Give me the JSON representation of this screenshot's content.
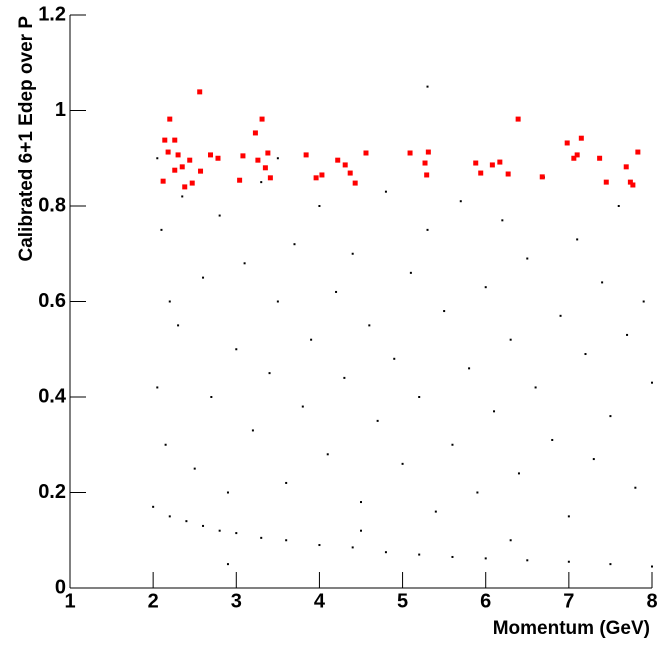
{
  "chart_data": {
    "type": "scatter",
    "x_label": "Momentum (GeV)",
    "y_label": "Calibrated 6+1 Edep over P",
    "xlim": [
      1,
      8
    ],
    "ylim": [
      0,
      1.2
    ],
    "xticks": [
      1,
      2,
      3,
      4,
      5,
      6,
      7,
      8
    ],
    "yticks": [
      0,
      0.2,
      0.4,
      0.6,
      0.8,
      1,
      1.2
    ],
    "series": [
      {
        "color": "#000000",
        "x": [
          2.0,
          2.2,
          2.4,
          2.6,
          2.8,
          3.0,
          3.3,
          3.6,
          4.0,
          4.4,
          4.8,
          5.2,
          5.6,
          6.0,
          6.5,
          7.0,
          7.5,
          8.0,
          2.05,
          2.1,
          2.15,
          2.3,
          2.35,
          2.5,
          2.6,
          2.7,
          2.8,
          2.9,
          3.0,
          3.1,
          3.2,
          3.3,
          3.4,
          3.5,
          3.6,
          3.7,
          3.8,
          3.9,
          4.0,
          4.1,
          4.2,
          4.3,
          4.4,
          4.5,
          4.6,
          4.7,
          4.8,
          4.9,
          5.0,
          5.1,
          5.2,
          5.3,
          5.4,
          5.5,
          5.6,
          5.7,
          5.8,
          5.9,
          6.0,
          6.1,
          6.2,
          6.3,
          6.4,
          6.5,
          6.6,
          6.7,
          6.8,
          6.9,
          7.0,
          7.1,
          7.2,
          7.3,
          7.4,
          7.5,
          7.6,
          7.7,
          7.8,
          7.9,
          8.0,
          2.2,
          3.5,
          5.3,
          2.9,
          4.5,
          6.3,
          2.05
        ],
        "values": [
          0.17,
          0.15,
          0.14,
          0.13,
          0.12,
          0.115,
          0.105,
          0.1,
          0.09,
          0.085,
          0.075,
          0.07,
          0.065,
          0.062,
          0.058,
          0.055,
          0.05,
          0.045,
          0.42,
          0.75,
          0.3,
          0.55,
          0.82,
          0.25,
          0.65,
          0.4,
          0.78,
          0.2,
          0.5,
          0.68,
          0.33,
          0.85,
          0.45,
          0.6,
          0.22,
          0.72,
          0.38,
          0.52,
          0.8,
          0.28,
          0.62,
          0.44,
          0.7,
          0.18,
          0.55,
          0.35,
          0.83,
          0.48,
          0.26,
          0.66,
          0.4,
          0.75,
          0.16,
          0.58,
          0.3,
          0.81,
          0.46,
          0.2,
          0.63,
          0.37,
          0.77,
          0.52,
          0.24,
          0.69,
          0.42,
          0.86,
          0.31,
          0.57,
          0.15,
          0.73,
          0.49,
          0.27,
          0.64,
          0.36,
          0.8,
          0.53,
          0.21,
          0.6,
          0.43,
          0.6,
          0.9,
          1.05,
          0.05,
          0.12,
          0.1,
          0.9
        ]
      },
      {
        "color": "#ff0000",
        "x": [
          2.56,
          2.2,
          2.14,
          2.26,
          2.18,
          2.3,
          2.44,
          2.12,
          2.26,
          2.35,
          2.38,
          2.47,
          2.57,
          2.69,
          2.78,
          3.23,
          3.31,
          3.08,
          3.04,
          3.26,
          3.35,
          3.41,
          3.38,
          3.84,
          3.96,
          4.03,
          4.22,
          4.31,
          4.37,
          4.43,
          4.56,
          5.09,
          5.27,
          5.29,
          5.31,
          5.88,
          5.94,
          6.08,
          6.17,
          6.27,
          6.39,
          6.68,
          6.98,
          7.06,
          7.1,
          7.15,
          7.37,
          7.45,
          7.69,
          7.74,
          7.83,
          7.77
        ],
        "values": [
          1.039,
          0.982,
          0.938,
          0.938,
          0.913,
          0.907,
          0.896,
          0.852,
          0.875,
          0.882,
          0.84,
          0.848,
          0.873,
          0.907,
          0.9,
          0.953,
          0.982,
          0.905,
          0.854,
          0.896,
          0.88,
          0.859,
          0.911,
          0.907,
          0.859,
          0.865,
          0.896,
          0.886,
          0.869,
          0.848,
          0.911,
          0.911,
          0.89,
          0.865,
          0.913,
          0.89,
          0.869,
          0.886,
          0.892,
          0.867,
          0.982,
          0.861,
          0.932,
          0.9,
          0.907,
          0.942,
          0.9,
          0.85,
          0.882,
          0.85,
          0.913,
          0.844
        ]
      }
    ]
  }
}
